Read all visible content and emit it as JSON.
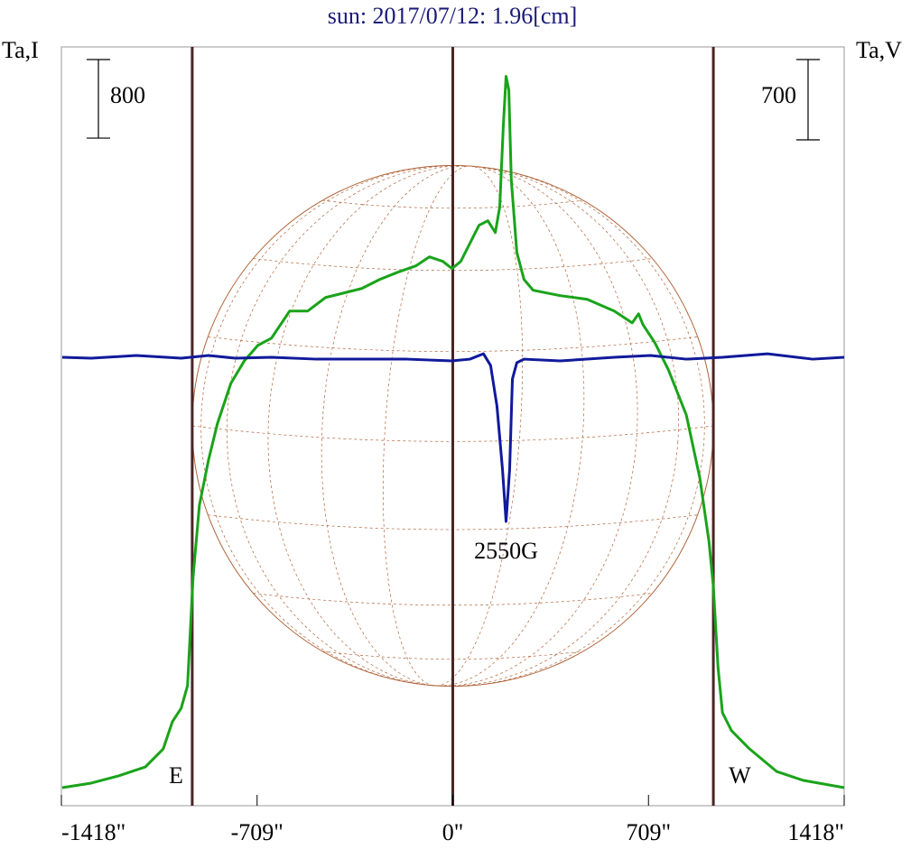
{
  "chart_data": {
    "type": "line",
    "title": "sun: 2017/07/12: 1.96[cm]",
    "ylabel": "Ta,I",
    "y2label": "Ta,V",
    "xlim": [
      -1418,
      1418
    ],
    "xticks": [
      {
        "value": -1418,
        "label": "-1418\""
      },
      {
        "value": -709,
        "label": "-709\""
      },
      {
        "value": 0,
        "label": "0\""
      },
      {
        "value": 709,
        "label": "709\""
      },
      {
        "value": 1418,
        "label": "1418\""
      }
    ],
    "ylim": [
      0,
      7730
    ],
    "y2lim": [
      -3909,
      2706
    ],
    "scale_bar": 800,
    "scale_bar2": 700,
    "vlines": [
      -944,
      0,
      944
    ],
    "limb_labels": [
      "E",
      "W"
    ],
    "peak_label": "2550G",
    "series": [
      {
        "name": "I",
        "color": "#1aa31a",
        "x": [
          -1415,
          -1310,
          -1212,
          -1114,
          -1049,
          -1016,
          -984,
          -961,
          -951,
          -941,
          -918,
          -885,
          -853,
          -804,
          -755,
          -706,
          -657,
          -591,
          -526,
          -461,
          -395,
          -330,
          -265,
          -199,
          -134,
          -85,
          -36,
          -3,
          29,
          62,
          95,
          127,
          154,
          170,
          183,
          193,
          203,
          212,
          232,
          258,
          291,
          389,
          487,
          585,
          650,
          673,
          689,
          732,
          781,
          846,
          895,
          928,
          944,
          961,
          977,
          1010,
          1075,
          1173,
          1271,
          1418
        ],
        "values": [
          184,
          230,
          303,
          395,
          579,
          855,
          993,
          1223,
          1775,
          2326,
          3062,
          3522,
          3890,
          4303,
          4533,
          4690,
          4763,
          5039,
          5039,
          5177,
          5223,
          5269,
          5361,
          5435,
          5499,
          5591,
          5545,
          5472,
          5545,
          5729,
          5913,
          5959,
          5839,
          6097,
          6924,
          7430,
          7292,
          6373,
          5637,
          5361,
          5251,
          5196,
          5159,
          5039,
          4919,
          5011,
          4901,
          4717,
          4441,
          3981,
          3338,
          2694,
          2234,
          1407,
          947,
          763,
          579,
          349,
          257,
          184
        ]
      },
      {
        "name": "V",
        "color": "#101a9a",
        "axis": "y2",
        "x": [
          -1415,
          -1310,
          -1147,
          -984,
          -885,
          -787,
          -657,
          -493,
          -330,
          -166,
          -3,
          62,
          111,
          137,
          160,
          180,
          193,
          206,
          216,
          232,
          258,
          389,
          585,
          716,
          846,
          977,
          1140,
          1304,
          1418
        ],
        "values": [
          0,
          -8,
          16,
          -8,
          16,
          -8,
          0,
          -16,
          -16,
          -16,
          -31,
          -16,
          31,
          -71,
          -425,
          -975,
          -1431,
          -975,
          -189,
          -47,
          -16,
          -31,
          0,
          16,
          -16,
          0,
          31,
          -16,
          0
        ]
      }
    ]
  }
}
